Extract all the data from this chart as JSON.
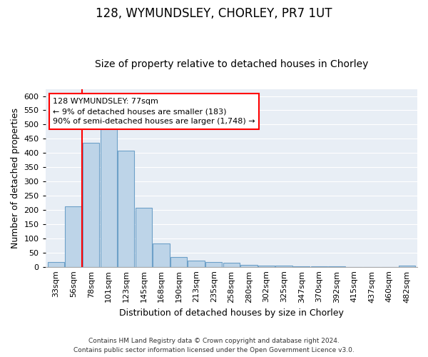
{
  "title1": "128, WYMUNDSLEY, CHORLEY, PR7 1UT",
  "title2": "Size of property relative to detached houses in Chorley",
  "xlabel": "Distribution of detached houses by size in Chorley",
  "ylabel": "Number of detached properties",
  "categories": [
    "33sqm",
    "56sqm",
    "78sqm",
    "101sqm",
    "123sqm",
    "145sqm",
    "168sqm",
    "190sqm",
    "213sqm",
    "235sqm",
    "258sqm",
    "280sqm",
    "302sqm",
    "325sqm",
    "347sqm",
    "370sqm",
    "392sqm",
    "415sqm",
    "437sqm",
    "460sqm",
    "482sqm"
  ],
  "values": [
    18,
    212,
    435,
    500,
    408,
    208,
    82,
    35,
    22,
    18,
    13,
    7,
    5,
    3,
    2,
    1,
    1,
    0,
    0,
    0,
    3
  ],
  "bar_color": "#bdd4e8",
  "bar_edge_color": "#6da0c8",
  "marker_bin_index": 2,
  "annotation_line1": "128 WYMUNDSLEY: 77sqm",
  "annotation_line2": "← 9% of detached houses are smaller (183)",
  "annotation_line3": "90% of semi-detached houses are larger (1,748) →",
  "annotation_box_color": "white",
  "annotation_box_edge": "red",
  "marker_line_color": "red",
  "footer1": "Contains HM Land Registry data © Crown copyright and database right 2024.",
  "footer2": "Contains public sector information licensed under the Open Government Licence v3.0.",
  "ylim": [
    0,
    625
  ],
  "yticks": [
    0,
    50,
    100,
    150,
    200,
    250,
    300,
    350,
    400,
    450,
    500,
    550,
    600
  ],
  "bg_color": "#e8eef5",
  "grid_color": "white",
  "title1_fontsize": 12,
  "title2_fontsize": 10,
  "xlabel_fontsize": 9,
  "ylabel_fontsize": 9,
  "tick_fontsize": 8,
  "annot_fontsize": 8
}
